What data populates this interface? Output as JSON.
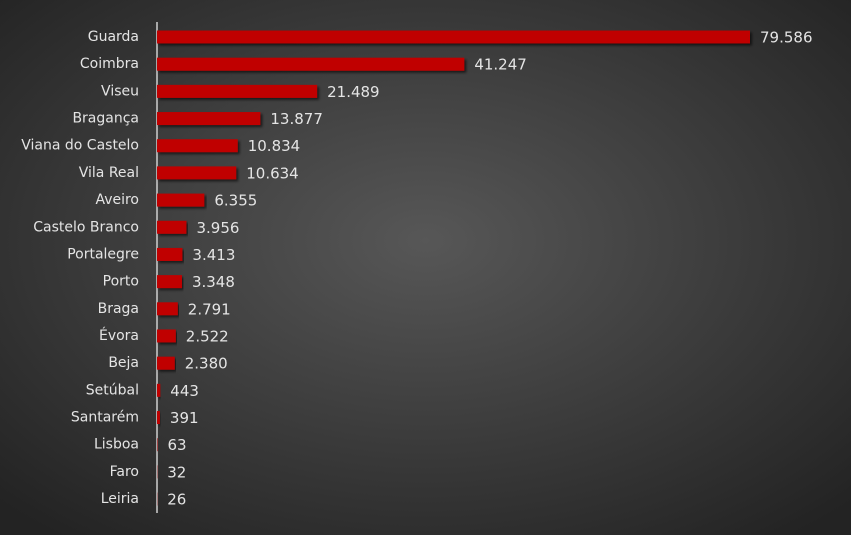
{
  "chart_data": {
    "type": "bar",
    "orientation": "horizontal",
    "color": "#c00000",
    "categories": [
      "Guarda",
      "Coimbra",
      "Viseu",
      "Bragança",
      "Viana do Castelo",
      "Vila Real",
      "Aveiro",
      "Castelo Branco",
      "Portalegre",
      "Porto",
      "Braga",
      "Évora",
      "Beja",
      "Setúbal",
      "Santarém",
      "Lisboa",
      "Faro",
      "Leiria"
    ],
    "values": [
      79586,
      41247,
      21489,
      13877,
      10834,
      10634,
      6355,
      3956,
      3413,
      3348,
      2791,
      2522,
      2380,
      443,
      391,
      63,
      32,
      26
    ],
    "value_labels": [
      "79.586",
      "41.247",
      "21.489",
      "13.877",
      "10.834",
      "10.634",
      "6.355",
      "3.956",
      "3.413",
      "3.348",
      "2.791",
      "2.522",
      "2.380",
      "443",
      "391",
      "63",
      "32",
      "26"
    ]
  }
}
